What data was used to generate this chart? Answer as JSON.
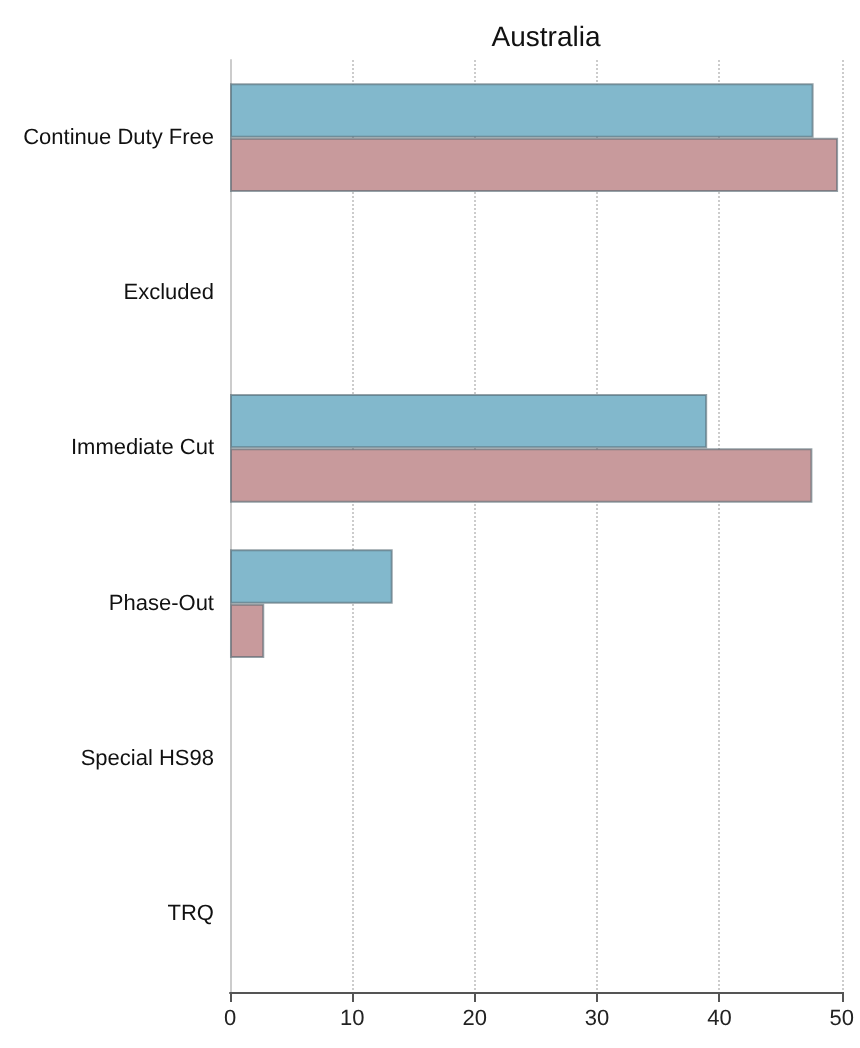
{
  "chart_data": {
    "type": "bar",
    "orientation": "horizontal",
    "title": "Australia",
    "categories": [
      "Continue Duty Free",
      "Excluded",
      "Immediate Cut",
      "Phase-Out",
      "Special HS98",
      "TRQ"
    ],
    "series": [
      {
        "color": "#82b8cc",
        "values": [
          47.7,
          0,
          39.0,
          13.3,
          0,
          0
        ]
      },
      {
        "color": "#c89a9c",
        "values": [
          49.7,
          0,
          47.6,
          2.8,
          0,
          0
        ]
      }
    ],
    "xlim": [
      0,
      50
    ],
    "xticks": [
      0,
      10,
      20,
      30,
      40,
      50
    ],
    "grid": "x"
  }
}
